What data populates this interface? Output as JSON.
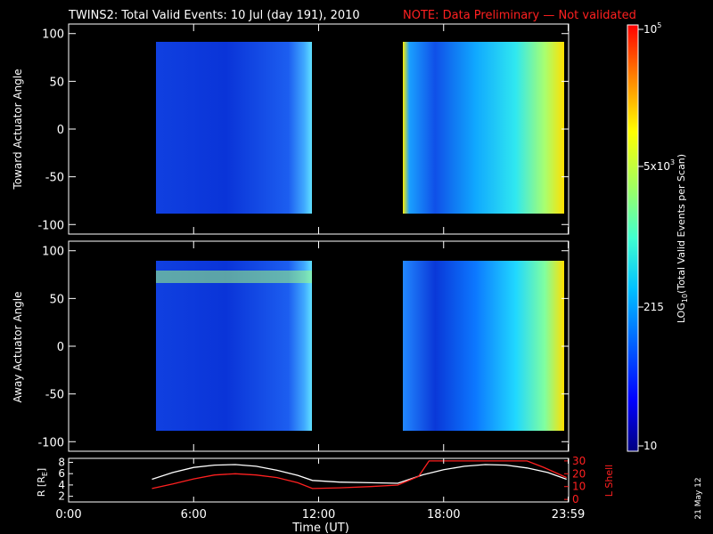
{
  "title": "TWINS2: Total Valid Events: 10 Jul (day 191), 2010",
  "note": "NOTE: Data Preliminary — Not validated",
  "date_stamp": "21 May 12",
  "colors": {
    "background": "#000000",
    "note": "#ff2020",
    "rshell_line": "#ffffff",
    "lshell_line": "#ff2020",
    "colormap": [
      "#00007f",
      "#0000ff",
      "#0060ff",
      "#00c0ff",
      "#40ffd0",
      "#a0ff60",
      "#ffff00",
      "#ff8000",
      "#ff0000"
    ]
  },
  "chart_data": [
    {
      "type": "heatmap",
      "name": "toward",
      "xlabel": "",
      "ylabel": "Toward Actuator Angle",
      "ylim": [
        -110,
        110
      ],
      "yticks": [
        100,
        50,
        0,
        -50,
        -100
      ],
      "xlim_hours": [
        0,
        24
      ],
      "data_blocks": [
        {
          "x_start": "04:00",
          "x_end": "11:30",
          "y_range": [
            -88,
            90
          ],
          "level": "low (blue)"
        },
        {
          "x_start": "15:45",
          "x_end": "23:55",
          "y_range": [
            -88,
            90
          ],
          "level": "rising from blue to yellow"
        }
      ],
      "colorbar": {
        "label_prefix": "LOG",
        "label_sub": "10",
        "label_suffix": "(Total Valid Events per Scan)",
        "ticks": [
          {
            "base": "10",
            "exp": "5"
          },
          {
            "base": "5x10",
            "exp": "3"
          },
          {
            "base": "215",
            "exp": ""
          },
          {
            "base": "10",
            "exp": ""
          }
        ]
      }
    },
    {
      "type": "heatmap",
      "name": "away",
      "xlabel": "",
      "ylabel": "Away Actuator Angle",
      "ylim": [
        -110,
        110
      ],
      "yticks": [
        100,
        50,
        0,
        -50,
        -100
      ],
      "xlim_hours": [
        0,
        24
      ],
      "data_blocks": [
        {
          "x_start": "04:00",
          "x_end": "11:30",
          "y_range": [
            -88,
            90
          ],
          "level": "low (blue), bright band near 75"
        },
        {
          "x_start": "15:45",
          "x_end": "23:55",
          "y_range": [
            -88,
            90
          ],
          "level": "rising from blue to yellow"
        }
      ]
    },
    {
      "type": "line",
      "name": "orbit",
      "xlabel": "Time (UT)",
      "ylabel_left": "R [R",
      "ylabel_left_sub": "E",
      "ylabel_left_end": "]",
      "ylabel_right": "L Shell",
      "left_ticks": [
        8,
        6,
        4,
        2
      ],
      "right_ticks": [
        30,
        20,
        10,
        0
      ],
      "xtick_labels": [
        "0:00",
        "6:00",
        "12:00",
        "18:00",
        "23:59"
      ],
      "xtick_hours": [
        0,
        6,
        12,
        18,
        23.98
      ],
      "series": [
        {
          "axis": "left",
          "x": [
            4.0,
            5.0,
            6.0,
            7.0,
            8.0,
            9.0,
            10.0,
            11.0,
            11.7,
            13.0,
            14.5,
            15.8,
            17.0,
            18.0,
            19.0,
            20.0,
            21.0,
            22.0,
            23.0,
            23.9
          ],
          "y": [
            5.0,
            6.2,
            7.1,
            7.5,
            7.6,
            7.3,
            6.6,
            5.7,
            4.8,
            4.5,
            4.4,
            4.3,
            5.8,
            6.7,
            7.3,
            7.6,
            7.5,
            7.0,
            6.2,
            5.0
          ]
        },
        {
          "axis": "right",
          "x": [
            4.0,
            5.0,
            6.0,
            7.0,
            8.0,
            9.0,
            10.0,
            11.0,
            11.7,
            13.0,
            14.5,
            15.8,
            16.8,
            17.3,
            22.0,
            22.8,
            23.9
          ],
          "y": [
            8.5,
            12,
            16,
            19,
            20,
            19,
            17,
            13,
            8.5,
            9,
            10,
            11.2,
            18,
            30,
            30,
            25,
            17
          ]
        }
      ]
    }
  ]
}
